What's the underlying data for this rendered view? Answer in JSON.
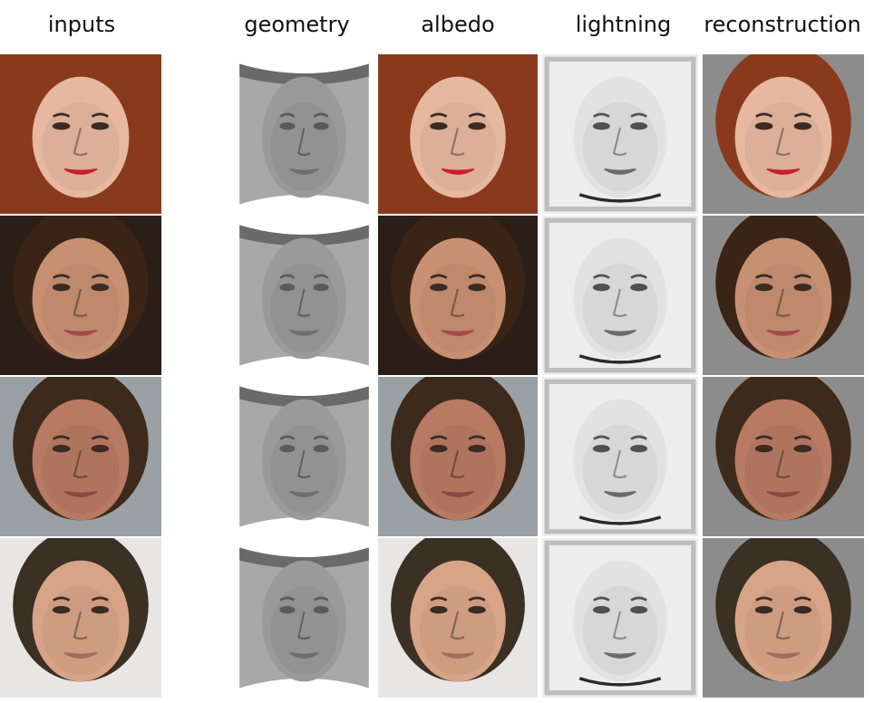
{
  "figure": {
    "columns": [
      {
        "id": "inputs",
        "label": "inputs"
      },
      {
        "id": "geometry",
        "label": "geometry"
      },
      {
        "id": "albedo",
        "label": "albedo"
      },
      {
        "id": "lightning",
        "label": "lightning"
      },
      {
        "id": "reconstruction",
        "label": "reconstruction"
      }
    ],
    "rows": [
      {
        "subject": "woman-red-hair",
        "hair": "#8a3a1c",
        "skin": "#e6b8a0",
        "lips": "#c8202a",
        "bg": "#8a3a1c"
      },
      {
        "subject": "woman-dark-hair",
        "hair": "#3a2416",
        "skin": "#c89072",
        "lips": "#a44a4a",
        "bg": "#2a1e16"
      },
      {
        "subject": "man-short-hair",
        "hair": "#3c2a1c",
        "skin": "#b87a62",
        "lips": "#8a4a42",
        "bg": "#9aa0a4"
      },
      {
        "subject": "man-headband",
        "hair": "#3a3024",
        "skin": "#d8a488",
        "lips": "#a46a5e",
        "bg": "#e8e6e4"
      }
    ]
  }
}
